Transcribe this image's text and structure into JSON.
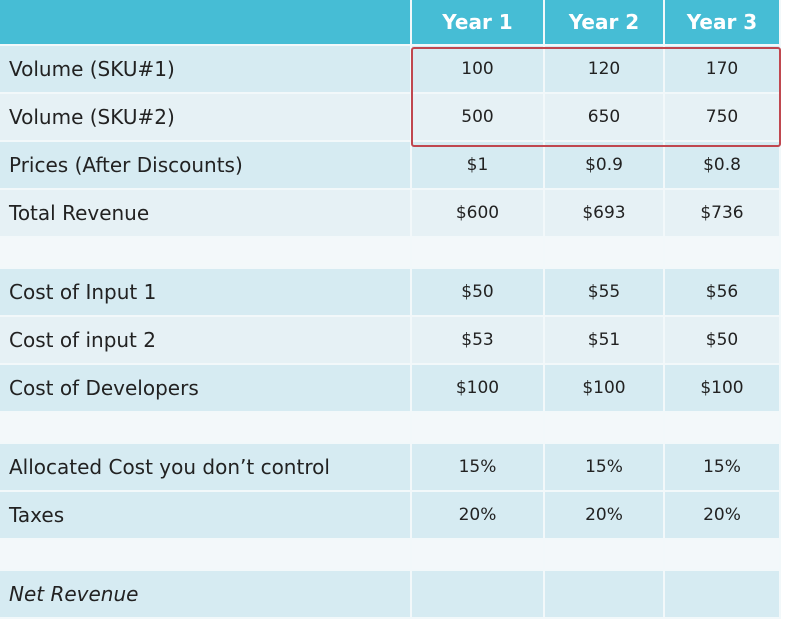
{
  "header": {
    "columns": [
      "Year 1",
      "Year 2",
      "Year 3"
    ]
  },
  "rows": [
    {
      "label": "Volume (SKU#1)",
      "values": [
        "100",
        "120",
        "170"
      ]
    },
    {
      "label": "Volume (SKU#2)",
      "values": [
        "500",
        "650",
        "750"
      ]
    },
    {
      "label": "Prices (After Discounts)",
      "values": [
        "$1",
        "$0.9",
        "$0.8"
      ]
    },
    {
      "label": "Total Revenue",
      "values": [
        "$600",
        "$693",
        "$736"
      ]
    },
    {
      "label": "Cost of Input 1",
      "values": [
        "$50",
        "$55",
        "$56"
      ]
    },
    {
      "label": "Cost of input 2",
      "values": [
        "$53",
        "$51",
        "$50"
      ]
    },
    {
      "label": "Cost of Developers",
      "values": [
        "$100",
        "$100",
        "$100"
      ]
    },
    {
      "label": "Allocated Cost you don’t control",
      "values": [
        "15%",
        "15%",
        "15%"
      ]
    },
    {
      "label": "Taxes",
      "values": [
        "20%",
        "20%",
        "20%"
      ]
    },
    {
      "label": "Net Revenue",
      "values": [
        "",
        "",
        ""
      ]
    }
  ],
  "colors": {
    "header": "#46bdd5",
    "row_dark": "#d6ebf2",
    "row_light": "#e6f1f5",
    "highlight_border": "#c0474f"
  }
}
